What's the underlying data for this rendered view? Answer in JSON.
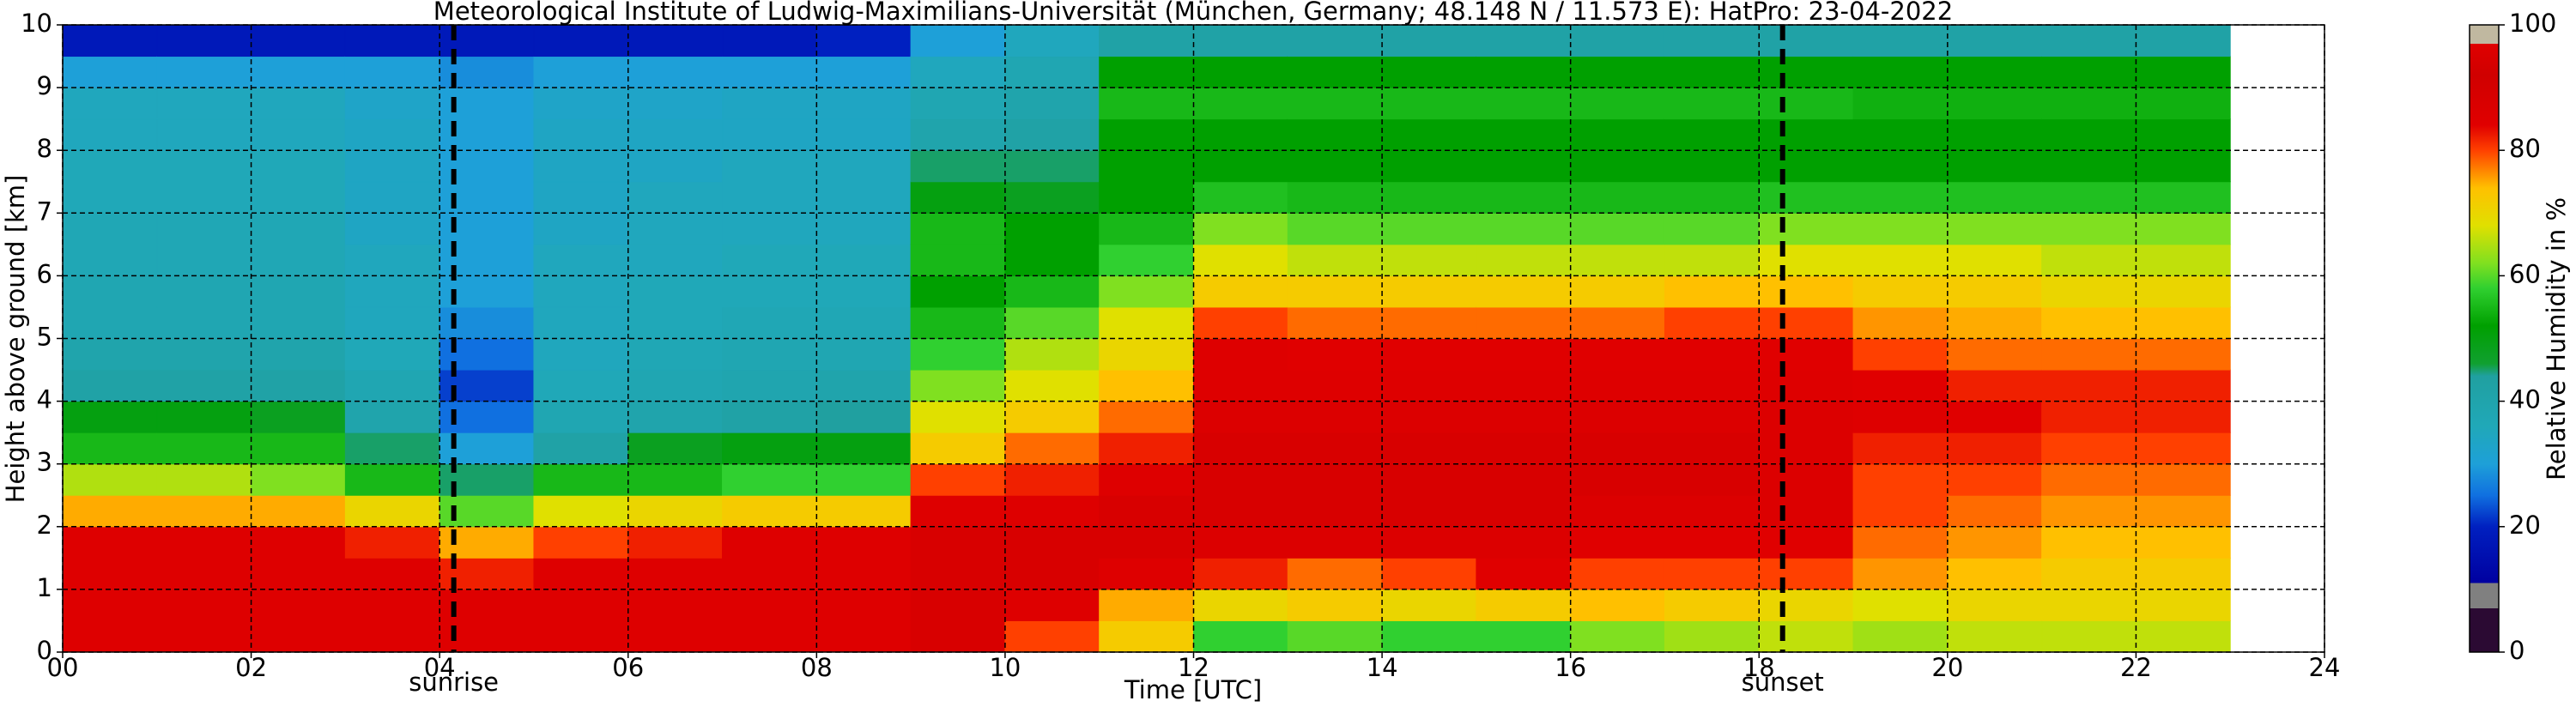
{
  "chart_data": {
    "type": "heatmap",
    "title": "Meteorological Institute of Ludwig-Maximilians-Universität (München, Germany; 48.148 N / 11.573 E):    HatPro: 23-04-2022",
    "x_label": "Time [UTC]",
    "y_label": "Height above ground [km]",
    "colorbar_label": "Relative Humidity in %",
    "xlim": [
      0,
      24
    ],
    "ylim": [
      0,
      10
    ],
    "xticks": [
      {
        "value": 0,
        "label": "00"
      },
      {
        "value": 2,
        "label": "02"
      },
      {
        "value": 4,
        "label": "04"
      },
      {
        "value": 6,
        "label": "06"
      },
      {
        "value": 8,
        "label": "08"
      },
      10,
      12,
      14,
      16,
      18,
      20,
      22,
      24
    ],
    "yticks": [
      0,
      1,
      2,
      3,
      4,
      5,
      6,
      7,
      8,
      9,
      10
    ],
    "grid": true,
    "clim": [
      0,
      100
    ],
    "cticks": [
      0,
      20,
      40,
      60,
      80,
      100
    ],
    "colorscale": [
      {
        "value": 0,
        "color": "#2b0a33"
      },
      {
        "value": 7,
        "color": "#2b0a33"
      },
      {
        "value": 7,
        "color": "#808080"
      },
      {
        "value": 11,
        "color": "#808080"
      },
      {
        "value": 11,
        "color": "#0000a0"
      },
      {
        "value": 20,
        "color": "#0020c0"
      },
      {
        "value": 25,
        "color": "#1070e0"
      },
      {
        "value": 30,
        "color": "#1ea0d8"
      },
      {
        "value": 36,
        "color": "#20a8b8"
      },
      {
        "value": 44,
        "color": "#20a0a0"
      },
      {
        "value": 46,
        "color": "#10a030"
      },
      {
        "value": 52,
        "color": "#00a000"
      },
      {
        "value": 58,
        "color": "#30d030"
      },
      {
        "value": 62,
        "color": "#80e020"
      },
      {
        "value": 68,
        "color": "#e0e000"
      },
      {
        "value": 74,
        "color": "#ffc000"
      },
      {
        "value": 80,
        "color": "#ff4000"
      },
      {
        "value": 84,
        "color": "#e00000"
      },
      {
        "value": 92,
        "color": "#d00000"
      },
      {
        "value": 97,
        "color": "#e00000"
      },
      {
        "value": 97,
        "color": "#c0b8a0"
      },
      {
        "value": 100,
        "color": "#c0b8a0"
      }
    ],
    "x_edges": [
      0,
      1,
      2,
      3,
      4,
      5,
      6,
      7,
      8,
      9,
      10,
      11,
      12,
      13,
      14,
      15,
      16,
      17,
      18,
      19,
      20,
      21,
      22,
      23
    ],
    "y_edges": [
      0,
      0.5,
      1,
      1.5,
      2,
      2.5,
      3,
      3.5,
      4,
      4.5,
      5,
      5.5,
      6,
      6.5,
      7,
      7.5,
      8,
      8.5,
      9,
      9.5,
      10
    ],
    "values": [
      [
        85,
        85,
        85,
        85,
        75,
        65,
        55,
        50,
        42,
        40,
        38,
        38,
        37,
        37,
        36,
        36,
        35,
        35,
        30,
        18
      ],
      [
        85,
        85,
        85,
        85,
        75,
        65,
        55,
        50,
        42,
        40,
        38,
        38,
        37,
        37,
        36,
        36,
        35,
        35,
        30,
        18
      ],
      [
        85,
        85,
        85,
        85,
        75,
        62,
        55,
        48,
        42,
        40,
        38,
        38,
        37,
        37,
        36,
        36,
        35,
        35,
        30,
        18
      ],
      [
        85,
        85,
        85,
        82,
        70,
        55,
        45,
        40,
        38,
        36,
        35,
        35,
        35,
        34,
        34,
        34,
        34,
        33,
        30,
        18
      ],
      [
        85,
        85,
        82,
        75,
        60,
        45,
        30,
        25,
        22,
        25,
        28,
        30,
        30,
        30,
        30,
        30,
        30,
        30,
        28,
        18
      ],
      [
        85,
        85,
        85,
        80,
        68,
        55,
        42,
        38,
        36,
        35,
        35,
        35,
        35,
        34,
        34,
        34,
        34,
        33,
        30,
        18
      ],
      [
        85,
        85,
        85,
        82,
        70,
        55,
        48,
        40,
        38,
        37,
        36,
        36,
        35,
        35,
        35,
        34,
        34,
        33,
        30,
        18
      ],
      [
        85,
        85,
        85,
        85,
        72,
        58,
        50,
        42,
        39,
        38,
        37,
        36,
        36,
        35,
        35,
        35,
        34,
        34,
        30,
        18
      ],
      [
        85,
        85,
        85,
        85,
        72,
        58,
        50,
        44,
        40,
        38,
        37,
        36,
        36,
        35,
        35,
        35,
        34,
        34,
        30,
        20
      ],
      [
        88,
        88,
        88,
        88,
        85,
        80,
        72,
        68,
        62,
        58,
        55,
        52,
        55,
        55,
        50,
        45,
        40,
        38,
        35,
        30
      ],
      [
        80,
        85,
        88,
        88,
        85,
        82,
        78,
        72,
        68,
        65,
        60,
        55,
        52,
        52,
        48,
        45,
        42,
        40,
        38,
        35
      ],
      [
        72,
        75,
        85,
        88,
        88,
        85,
        82,
        78,
        74,
        70,
        68,
        62,
        58,
        55,
        52,
        52,
        52,
        55,
        52,
        42
      ],
      [
        58,
        70,
        82,
        86,
        88,
        88,
        88,
        86,
        85,
        85,
        80,
        72,
        68,
        62,
        56,
        52,
        52,
        55,
        52,
        42
      ],
      [
        60,
        72,
        78,
        86,
        88,
        88,
        88,
        86,
        85,
        84,
        78,
        72,
        66,
        60,
        55,
        52,
        52,
        55,
        52,
        42
      ],
      [
        58,
        70,
        80,
        86,
        88,
        88,
        88,
        86,
        85,
        84,
        78,
        72,
        66,
        60,
        55,
        52,
        52,
        55,
        52,
        42
      ],
      [
        58,
        72,
        84,
        86,
        88,
        88,
        88,
        86,
        85,
        84,
        78,
        72,
        66,
        60,
        55,
        52,
        52,
        55,
        52,
        42
      ],
      [
        62,
        74,
        80,
        84,
        86,
        88,
        88,
        86,
        85,
        84,
        78,
        72,
        66,
        60,
        55,
        52,
        52,
        55,
        52,
        42
      ],
      [
        64,
        72,
        80,
        84,
        86,
        88,
        88,
        86,
        85,
        84,
        80,
        74,
        66,
        60,
        55,
        52,
        52,
        55,
        52,
        42
      ],
      [
        66,
        70,
        80,
        84,
        86,
        86,
        86,
        86,
        85,
        84,
        80,
        74,
        68,
        62,
        56,
        52,
        52,
        55,
        52,
        42
      ],
      [
        64,
        68,
        76,
        78,
        80,
        80,
        82,
        85,
        84,
        80,
        76,
        72,
        68,
        62,
        56,
        52,
        52,
        54,
        52,
        42
      ],
      [
        66,
        70,
        74,
        76,
        78,
        80,
        82,
        84,
        82,
        78,
        75,
        72,
        68,
        62,
        56,
        52,
        52,
        54,
        52,
        42
      ],
      [
        66,
        70,
        72,
        74,
        76,
        78,
        80,
        82,
        82,
        78,
        74,
        70,
        66,
        62,
        56,
        52,
        52,
        54,
        52,
        42
      ],
      [
        66,
        70,
        72,
        74,
        76,
        78,
        80,
        82,
        82,
        78,
        74,
        70,
        66,
        62,
        56,
        52,
        52,
        54,
        52,
        42
      ]
    ],
    "annotations": [
      {
        "text": "sunrise",
        "x": 4.15
      },
      {
        "text": "sunset",
        "x": 18.25
      }
    ]
  }
}
